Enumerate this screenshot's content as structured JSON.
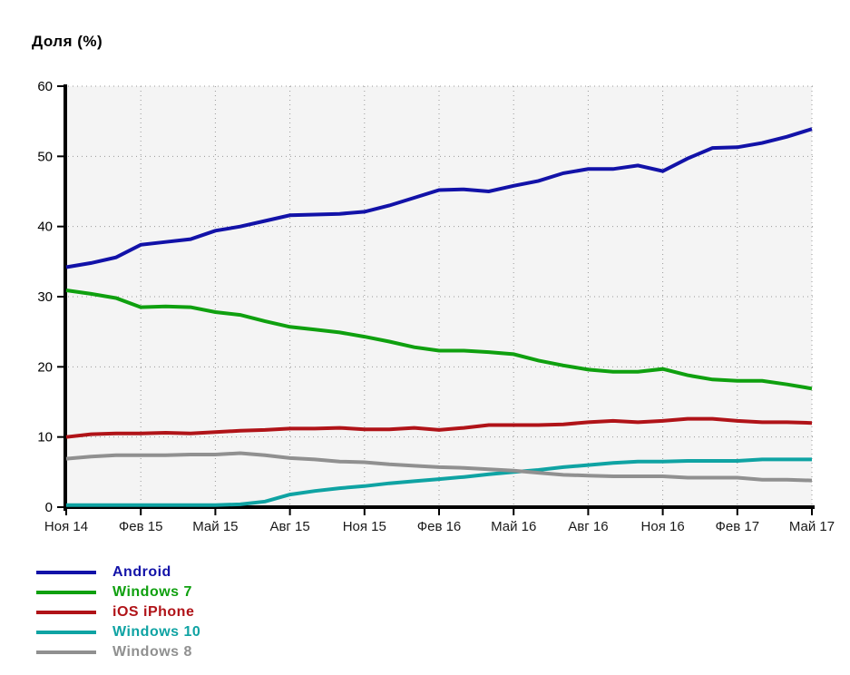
{
  "title": "Доля (%)",
  "chart_data": {
    "type": "line",
    "title": "Доля (%)",
    "xlabel": "",
    "ylabel": "Доля (%)",
    "ylim": [
      0,
      60
    ],
    "y_ticks": [
      0,
      10,
      20,
      30,
      40,
      50,
      60
    ],
    "x_tick_labels": [
      "Ноя 14",
      "Фев 15",
      "Май 15",
      "Авг 15",
      "Ноя 15",
      "Фев 16",
      "Май 16",
      "Авг 16",
      "Ноя 16",
      "Фев 17",
      "Май 17"
    ],
    "x_tick_every": 3,
    "points_per_series": 31,
    "grid": "dotted",
    "legend_position": "bottom-left",
    "plot_bg_color": "#f4f4f4",
    "grid_color": "#999999",
    "axis_color": "#000000",
    "text_color": "#1a1a1a",
    "series": [
      {
        "name": "Android",
        "color": "#1212a8",
        "values": [
          34.2,
          34.8,
          35.6,
          37.4,
          37.8,
          38.2,
          39.4,
          40.0,
          40.8,
          41.6,
          41.7,
          41.8,
          42.1,
          43.0,
          44.1,
          45.2,
          45.3,
          45.0,
          45.8,
          46.5,
          47.6,
          48.2,
          48.2,
          48.7,
          47.9,
          49.7,
          51.2,
          51.3,
          51.9,
          52.8,
          53.9
        ]
      },
      {
        "name": "Windows 7",
        "color": "#0fa00f",
        "values": [
          30.9,
          30.4,
          29.8,
          28.5,
          28.6,
          28.5,
          27.8,
          27.4,
          26.5,
          25.7,
          25.3,
          24.9,
          24.3,
          23.6,
          22.8,
          22.3,
          22.3,
          22.1,
          21.8,
          20.9,
          20.2,
          19.6,
          19.3,
          19.3,
          19.7,
          18.8,
          18.2,
          18.0,
          18.0,
          17.5,
          16.9
        ]
      },
      {
        "name": "iOS iPhone",
        "color": "#b01318",
        "values": [
          10.0,
          10.4,
          10.5,
          10.5,
          10.6,
          10.5,
          10.7,
          10.9,
          11.0,
          11.2,
          11.2,
          11.3,
          11.1,
          11.1,
          11.3,
          11.0,
          11.3,
          11.7,
          11.7,
          11.7,
          11.8,
          12.1,
          12.3,
          12.1,
          12.3,
          12.6,
          12.6,
          12.3,
          12.1,
          12.1,
          12.0
        ]
      },
      {
        "name": "Windows 10",
        "color": "#0fa3a3",
        "values": [
          0.3,
          0.3,
          0.3,
          0.3,
          0.3,
          0.3,
          0.3,
          0.4,
          0.8,
          1.8,
          2.3,
          2.7,
          3.0,
          3.4,
          3.7,
          4.0,
          4.3,
          4.7,
          5.0,
          5.3,
          5.7,
          6.0,
          6.3,
          6.5,
          6.5,
          6.6,
          6.6,
          6.6,
          6.8,
          6.8,
          6.8
        ]
      },
      {
        "name": "Windows 8",
        "color": "#909090",
        "values": [
          6.9,
          7.2,
          7.4,
          7.4,
          7.4,
          7.5,
          7.5,
          7.7,
          7.4,
          7.0,
          6.8,
          6.5,
          6.4,
          6.1,
          5.9,
          5.7,
          5.6,
          5.4,
          5.2,
          4.9,
          4.6,
          4.5,
          4.4,
          4.4,
          4.4,
          4.2,
          4.2,
          4.2,
          3.9,
          3.9,
          3.8
        ]
      }
    ]
  }
}
